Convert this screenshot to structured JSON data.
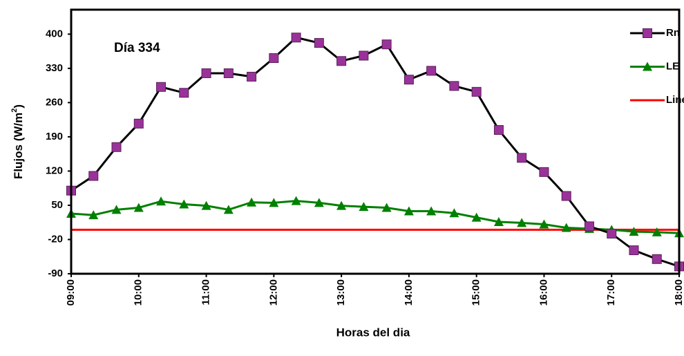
{
  "chart_data": {
    "type": "line",
    "annotation": "Día 334",
    "ylabel": {
      "text": "Flujos (W/m",
      "sup": "2",
      "end": ")"
    },
    "xlabel": "Horas del dia",
    "x": [
      9,
      9.33,
      9.67,
      10,
      10.33,
      10.67,
      11,
      11.33,
      11.67,
      12,
      12.33,
      12.67,
      13,
      13.33,
      13.67,
      14,
      14.33,
      14.67,
      15,
      15.33,
      15.67,
      16,
      16.33,
      16.67,
      17,
      17.33,
      17.67,
      18
    ],
    "series": [
      {
        "name": "Rn",
        "color": "#000000",
        "marker": "square",
        "marker_color": "#993399",
        "values": [
          80,
          110,
          169,
          217,
          292,
          280,
          320,
          320,
          313,
          351,
          393,
          382,
          345,
          356,
          379,
          307,
          325,
          294,
          282,
          204,
          147,
          118,
          69,
          7,
          -8,
          -42,
          -60,
          -75
        ]
      },
      {
        "name": "LE",
        "color": "#008000",
        "marker": "triangle",
        "marker_color": "#008000",
        "values": [
          33,
          30,
          41,
          45,
          58,
          52,
          49,
          41,
          56,
          55,
          59,
          55,
          49,
          47,
          45,
          38,
          38,
          34,
          25,
          16,
          14,
          11,
          4,
          2,
          0,
          -4,
          -5,
          -7
        ]
      },
      {
        "name": "Linea C",
        "color": "#ff0000",
        "marker": "none",
        "marker_color": "#ff0000",
        "values": [
          0,
          0,
          0,
          0,
          0,
          0,
          0,
          0,
          0,
          0,
          0,
          0,
          0,
          0,
          0,
          0,
          0,
          0,
          0,
          0,
          0,
          0,
          0,
          0,
          0,
          0,
          0,
          0
        ]
      }
    ],
    "xlim": [
      9,
      18
    ],
    "xticks": [
      {
        "value": 9,
        "label": "09:00"
      },
      {
        "value": 10,
        "label": "10:00"
      },
      {
        "value": 11,
        "label": "11:00"
      },
      {
        "value": 12,
        "label": "12:00"
      },
      {
        "value": 13,
        "label": "13:00"
      },
      {
        "value": 14,
        "label": "14:00"
      },
      {
        "value": 15,
        "label": "15:00"
      },
      {
        "value": 16,
        "label": "16:00"
      },
      {
        "value": 17,
        "label": "17:00"
      },
      {
        "value": 18,
        "label": "18:00"
      }
    ],
    "ylim": [
      -90,
      450
    ],
    "yticks": [
      -90,
      -20,
      50,
      120,
      190,
      260,
      330,
      400
    ],
    "grid": false,
    "legend": "top-right"
  }
}
